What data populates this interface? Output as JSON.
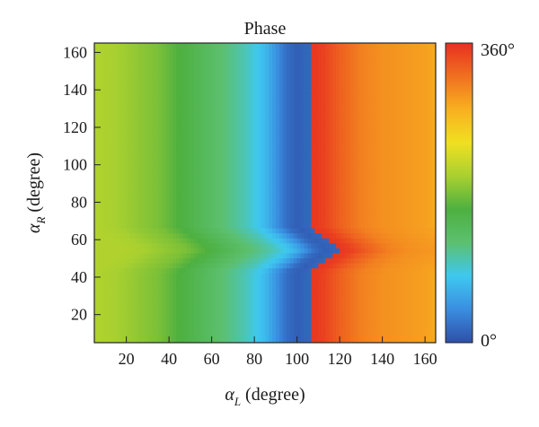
{
  "chart_data": {
    "type": "heatmap",
    "title": "Phase",
    "xlabel_symbol": "α",
    "xlabel_sub": "L",
    "xlabel_rest": " (degree)",
    "ylabel_symbol": "α",
    "ylabel_sub": "R",
    "ylabel_rest": " (degree)",
    "xlim": [
      5,
      165
    ],
    "ylim": [
      5,
      165
    ],
    "xticks": [
      20,
      40,
      60,
      80,
      100,
      120,
      140,
      160
    ],
    "yticks": [
      20,
      40,
      60,
      80,
      100,
      120,
      140,
      160
    ],
    "colorbar": {
      "min_label": "0°",
      "max_label": "360°",
      "range": [
        0,
        360
      ],
      "colors": [
        "#2e4fa8",
        "#3a8ee0",
        "#3ec8f0",
        "#5cc070",
        "#4db040",
        "#a8d030",
        "#f0e020",
        "#f8b020",
        "#f07020",
        "#e83020"
      ]
    },
    "x": [
      5,
      15,
      25,
      35,
      45,
      55,
      65,
      75,
      85,
      90,
      95,
      100,
      105,
      108,
      112,
      116,
      120,
      130,
      140,
      150,
      160,
      165
    ],
    "phase_profile_deg": [
      205,
      200,
      190,
      180,
      160,
      140,
      120,
      100,
      70,
      45,
      20,
      10,
      15,
      355,
      350,
      340,
      330,
      310,
      300,
      295,
      290,
      285
    ],
    "notch": {
      "center_y": 55,
      "half_height": 12,
      "x_shift_at_center": 14
    }
  }
}
